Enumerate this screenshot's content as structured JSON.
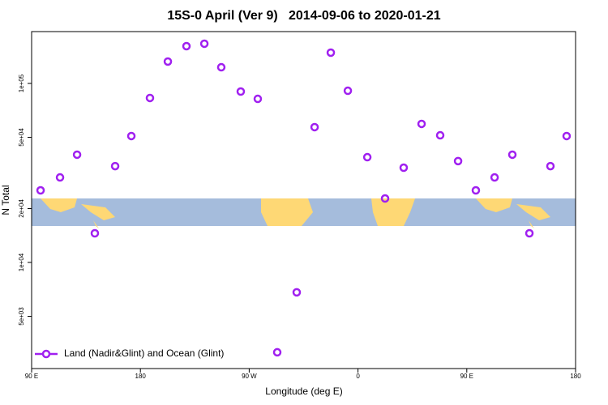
{
  "chart_data": {
    "type": "scatter",
    "title": "15S-0 April (Ver 9)   2014-09-06 to 2020-01-21",
    "x_label": "Longitude (deg E)",
    "y_label": "N Total",
    "y_log": true,
    "xlim": [
      90,
      540
    ],
    "ylim": [
      2554,
      194800
    ],
    "xticks": [
      {
        "value": 90,
        "label": "90 E"
      },
      180,
      {
        "value": 270,
        "label": "90 W"
      },
      {
        "value": 360,
        "label": "0"
      },
      {
        "value": 450,
        "label": "90 E"
      },
      {
        "value": 540,
        "label": "180"
      }
    ],
    "yticks": [
      {
        "value": 5000,
        "label": "5e+03"
      },
      {
        "value": 10000,
        "label": "1e+04"
      },
      {
        "value": 20000,
        "label": "2e+04"
      },
      {
        "value": 50000,
        "label": "5e+04"
      },
      {
        "value": 100000,
        "label": "1e+05"
      }
    ],
    "legend": "bottom-left",
    "series": [
      {
        "name": "Land (Nadir&Glint) and Ocean (Glint)",
        "color": "#a020f0",
        "x": [
          97.4,
          113.5,
          127.6,
          142.3,
          159.1,
          172.5,
          187.9,
          202.7,
          218.1,
          232.9,
          246.9,
          263.0,
          277.1,
          293.2,
          309.3,
          324.1,
          337.5,
          351.6,
          367.7,
          382.4,
          397.8,
          412.6,
          428.0,
          442.8,
          457.5,
          473.0,
          487.7,
          501.8,
          519.2,
          532.6
        ],
        "values": [
          25270,
          29850,
          39990,
          14550,
          34510,
          50820,
          82920,
          132500,
          161500,
          166700,
          123100,
          90100,
          82000,
          3148,
          6810,
          57000,
          148600,
          91000,
          38730,
          22770,
          33830,
          59430,
          51300,
          36830,
          25270,
          29850,
          39990,
          14550,
          34510,
          50820
        ]
      }
    ]
  }
}
